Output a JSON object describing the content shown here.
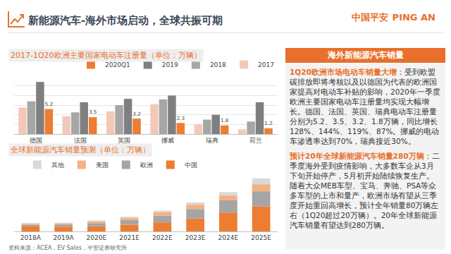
{
  "slide": {
    "title": "新能源汽车-海外市场启动，全球共振可期",
    "logo": [
      "中国平安",
      "PING AN"
    ],
    "source": "资料来源：ACEA，EV Sales，平安证券研究所"
  },
  "panel": {
    "header": "海外新能源汽车销量",
    "paragraphs": [
      {
        "lead": "1Q20欧洲市场电动车销量大增：",
        "text": "受到欧盟碳排放即将考核以及以德国为代表的欧洲国家提高对电动车补贴的影响，2020年一季度欧洲主要国家电动车注册量均实现大幅增长。德国、法国、英国、瑞典电动车注册量分别为5.2、3.5、3.2、1.8万辆，同比增长128%、144%、119%、87%。挪威的电动车渗透率达到70%，瑞典接近30%。"
      },
      {
        "lead": "预计20年全球新能源汽车销量280万辆：",
        "text": "二季度海外受到疫情影响，大多数车企从3月下旬开始停产，5月初开始陆续恢复生产。随着大众MEB车型、宝马、奔驰、PSA等众多车型的上市和量产，欧洲市场有望从三季度开始重回高增长，预计全年销量80万辆左右（1Q20超过20万辆）。20年全球新能源汽车销量有望达到280万辆。"
      }
    ]
  },
  "chart_data": [
    {
      "type": "bar",
      "title": "2017-1Q20欧洲主要国家电动车注册量（单位：万辆）",
      "categories": [
        "德国",
        "法国",
        "英国",
        "挪威",
        "瑞典",
        "荷兰"
      ],
      "series": [
        {
          "name": "2017",
          "color": "#f2c9b8",
          "values": [
            5.5,
            3.7,
            4.7,
            6.2,
            2.0,
            1.0
          ]
        },
        {
          "name": "2018",
          "color": "#a6a6a6",
          "values": [
            6.8,
            4.5,
            6.0,
            7.2,
            3.0,
            2.6
          ]
        },
        {
          "name": "2019",
          "color": "#7f7f7f",
          "values": [
            10.8,
            6.6,
            7.3,
            8.0,
            4.0,
            6.6
          ]
        },
        {
          "name": "2020Q1",
          "color": "#ed7d31",
          "values": [
            5.2,
            3.5,
            3.2,
            2.3,
            1.8,
            1.2
          ],
          "data_labels": true
        }
      ],
      "ylim": [
        0,
        12
      ],
      "yticks": [
        0,
        2,
        4,
        6,
        8,
        10,
        12
      ],
      "grid": true,
      "tick_labels": "x",
      "legend": "top right"
    },
    {
      "type": "bar",
      "title": "全球新能源汽车销量预测（单位：万辆）",
      "stacked": true,
      "categories": [
        "2018A",
        "2019A",
        "2020E",
        "2021E",
        "2022E",
        "2023E",
        "2024E",
        "2025E"
      ],
      "series": [
        {
          "name": "中国",
          "color": "#ed7d31",
          "values": [
            125,
            120,
            130,
            170,
            230,
            330,
            480,
            640
          ]
        },
        {
          "name": "欧洲",
          "color": "#a5a5a5",
          "values": [
            40,
            56,
            80,
            120,
            170,
            240,
            310,
            380
          ]
        },
        {
          "name": "美国",
          "color": "#f4b183",
          "values": [
            36,
            33,
            45,
            60,
            90,
            110,
            130,
            180
          ]
        },
        {
          "name": "其他",
          "color": "#d9d9d9",
          "values": [
            10,
            12,
            25,
            25,
            40,
            60,
            80,
            150
          ]
        }
      ],
      "ylim": [
        0,
        1400
      ],
      "yticks": [
        0,
        200,
        400,
        600,
        800,
        1000,
        1200,
        1400
      ],
      "grid": false,
      "tick_labels": "x",
      "legend": "top left"
    }
  ]
}
